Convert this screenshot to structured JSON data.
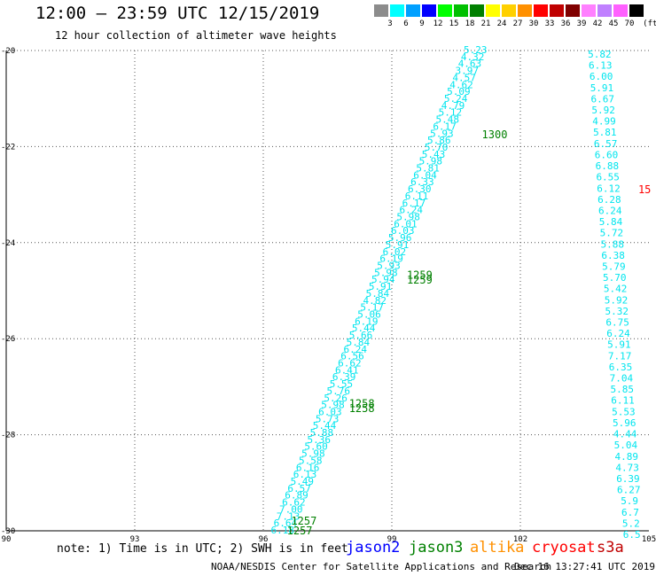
{
  "title": "12:00 – 23:59 UTC 12/15/2019",
  "subtitle": "12 hour collection of altimeter wave heights",
  "colorbar": {
    "labels": [
      "3",
      "6",
      "9",
      "12",
      "15",
      "18",
      "21",
      "24",
      "27",
      "30",
      "33",
      "36",
      "39",
      "42",
      "45",
      "70"
    ],
    "unit": "(ft)",
    "colors": [
      "#8c8c8c",
      "#00ffff",
      "#00a0ff",
      "#0000ff",
      "#00ff00",
      "#00c000",
      "#008000",
      "#ffff00",
      "#ffd000",
      "#ff9000",
      "#ff0000",
      "#c00000",
      "#800000",
      "#ff80ff",
      "#c080ff",
      "#ff60ff",
      "#000000"
    ]
  },
  "footnote": "note: 1) Time is in UTC; 2) SWH is in feet",
  "satellites": [
    {
      "name": "jason2",
      "color": "#0000ff"
    },
    {
      "name": "jason3",
      "color": "#008000"
    },
    {
      "name": "altika",
      "color": "#ff9000"
    },
    {
      "name": "cryosat",
      "color": "#ff0000"
    },
    {
      "name": "s3a",
      "color": "#c00000"
    }
  ],
  "credit": "NOAA/NESDIS Center for Satellite Applications and Research",
  "timestamp": "Dec 16 13:27:41 UTC 2019",
  "chart_data": {
    "type": "scatter",
    "xlim": [
      90,
      105
    ],
    "ylim": [
      -30,
      -20
    ],
    "x_ticks": [
      "90",
      "93",
      "96",
      "99",
      "102",
      "105"
    ],
    "y_ticks": [
      "-20",
      "-22",
      "-24",
      "-26",
      "-28",
      "-30"
    ],
    "grid": true,
    "track1": {
      "color": "#00e5ee",
      "x_start": 100.95,
      "y_start": -20.0,
      "x_end": 96.45,
      "y_end": -30.0,
      "values": [
        "5.23",
        "4.32",
        "4.63",
        "3.97",
        "4.57",
        "4.62",
        "5.09",
        "5.24",
        "4.79",
        "5.12",
        "5.48",
        "6.17",
        "5.93",
        "5.86",
        "5.70",
        "5.43",
        "5.98",
        "5.81",
        "6.04",
        "6.33",
        "6.30",
        "6.11",
        "6.17",
        "6.24",
        "5.98",
        "6.01",
        "6.03",
        "5.96",
        "5.91",
        "6.02",
        "6.19",
        "5.93",
        "5.98",
        "5.94",
        "5.91",
        "5.84",
        "4.82",
        "5.17",
        "5.06",
        "6.19",
        "5.44",
        "5.66",
        "5.84",
        "6.24",
        "6.56",
        "6.62",
        "6.41",
        "6.39",
        "5.55",
        "5.76",
        "5.26",
        "5.98",
        "6.03",
        "5.73",
        "5.44",
        "5.88",
        "5.36",
        "5.60",
        "5.98",
        "5.58",
        "6.16",
        "6.13",
        "5.49",
        "6.57",
        "6.89",
        "6.62",
        "7.00",
        "7.13",
        "6.64",
        "6.18"
      ]
    },
    "track2": {
      "color": "#00e5ee",
      "x": 103.85,
      "values": [
        "5.82",
        "6.13",
        "6.00",
        "5.91",
        "6.67",
        "5.92",
        "4.99",
        "5.81",
        "6.57",
        "6.60",
        "6.88",
        "6.55",
        "6.12",
        "6.28",
        "6.24",
        "5.84",
        "5.72",
        "5.88",
        "6.38",
        "5.79",
        "5.70",
        "5.42",
        "5.92",
        "5.32",
        "6.75",
        "6.24",
        "5.91",
        "7.17",
        "6.35",
        "7.04",
        "5.85",
        "6.11",
        "5.53",
        "5.96",
        "4.44",
        "5.04",
        "4.89",
        "4.73",
        "6.39",
        "6.27",
        "5.9",
        "6.7",
        "5.2",
        "6.5"
      ]
    },
    "annotations": [
      {
        "text": "1300",
        "x": 101.4,
        "y": -21.75,
        "color": "#008000"
      },
      {
        "text": "1259",
        "x": 99.65,
        "y": -24.68,
        "color": "#008000"
      },
      {
        "text": "1259",
        "x": 99.65,
        "y": -24.78,
        "color": "#008000"
      },
      {
        "text": "1258",
        "x": 98.3,
        "y": -27.35,
        "color": "#008000"
      },
      {
        "text": "1258",
        "x": 98.3,
        "y": -27.45,
        "color": "#008000"
      },
      {
        "text": "1257",
        "x": 96.95,
        "y": -29.8,
        "color": "#008000"
      },
      {
        "text": "1257",
        "x": 96.85,
        "y": -30.0,
        "color": "#008000"
      },
      {
        "text": "15",
        "x": 104.9,
        "y": -22.9,
        "color": "#ff0000"
      }
    ]
  }
}
